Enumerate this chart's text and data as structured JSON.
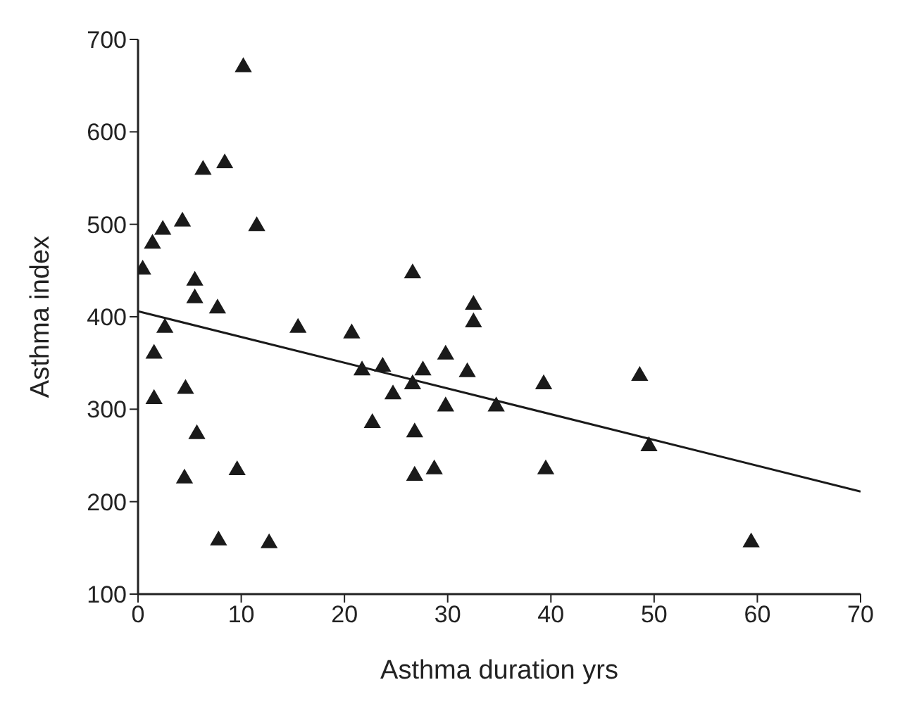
{
  "chart_data": {
    "type": "scatter",
    "xlabel": "Asthma duration yrs",
    "ylabel": "Asthma index",
    "xlim": [
      0,
      70
    ],
    "ylim": [
      100,
      700
    ],
    "xticks": [
      0,
      10,
      20,
      30,
      40,
      50,
      60,
      70
    ],
    "yticks": [
      100,
      200,
      300,
      400,
      500,
      600,
      700
    ],
    "marker": "triangle",
    "series": [
      {
        "color": "#1a1a1a",
        "x": [
          0.45,
          1.4,
          2.4,
          4.3,
          6.3,
          8.4,
          10.2,
          11.5,
          5.5,
          5.5,
          7.7,
          2.6,
          1.55,
          1.55,
          4.6,
          5.7,
          4.5,
          9.6,
          7.8,
          12.7,
          15.5,
          20.7,
          21.7,
          23.7,
          24.7,
          22.7,
          26.6,
          26.6,
          27.6,
          26.8,
          26.8,
          28.7,
          29.8,
          29.8,
          31.9,
          32.5,
          32.5,
          34.7,
          39.3,
          39.5,
          48.6,
          49.5,
          59.4
        ],
        "values": [
          451,
          479,
          494,
          503,
          559,
          566,
          670,
          498,
          439,
          420,
          409,
          388,
          360,
          311,
          322,
          273,
          225,
          234,
          158,
          155,
          388,
          382,
          342,
          346,
          316,
          285,
          447,
          327,
          342,
          275,
          228,
          235,
          359,
          303,
          340,
          413,
          394,
          303,
          327,
          235,
          336,
          260,
          156
        ]
      },
      {
        "type": "line",
        "color": "#1a1a1a",
        "marker": "none",
        "x": [
          0,
          70
        ],
        "values": [
          406,
          211
        ]
      }
    ]
  }
}
